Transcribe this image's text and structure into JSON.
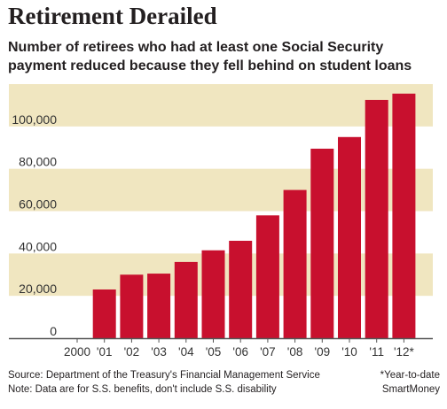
{
  "header": {
    "title": "Retirement Derailed",
    "subtitle": "Number of retirees who had at least one Social Security payment reduced because they fell behind on student loans"
  },
  "footer": {
    "source": "Source: Department of the Treasury's Financial Management Service",
    "note": "Note: Data are for S.S. benefits, don't include S.S. disability",
    "footnote": "*Year-to-date",
    "credit": "SmartMoney"
  },
  "colors": {
    "bar": "#c8102e",
    "band": "#f0e6c0",
    "axis": "#555555"
  },
  "chart_data": {
    "type": "bar",
    "categories": [
      "2000",
      "'01",
      "'02",
      "'03",
      "'04",
      "'05",
      "'06",
      "'07",
      "'08",
      "'09",
      "'10",
      "'11",
      "'12*"
    ],
    "values": [
      0,
      23000,
      30000,
      30500,
      36000,
      41500,
      46000,
      58000,
      70000,
      89500,
      95000,
      112500,
      115500
    ],
    "ylim": [
      0,
      120000
    ],
    "yticks": [
      0,
      20000,
      40000,
      60000,
      80000,
      100000
    ],
    "ytick_labels": [
      "0",
      "20,000",
      "40,000",
      "60,000",
      "80,000",
      "100,000"
    ],
    "title": "Retirement Derailed",
    "xlabel": "",
    "ylabel": "",
    "grid": "alternating horizontal bands"
  }
}
